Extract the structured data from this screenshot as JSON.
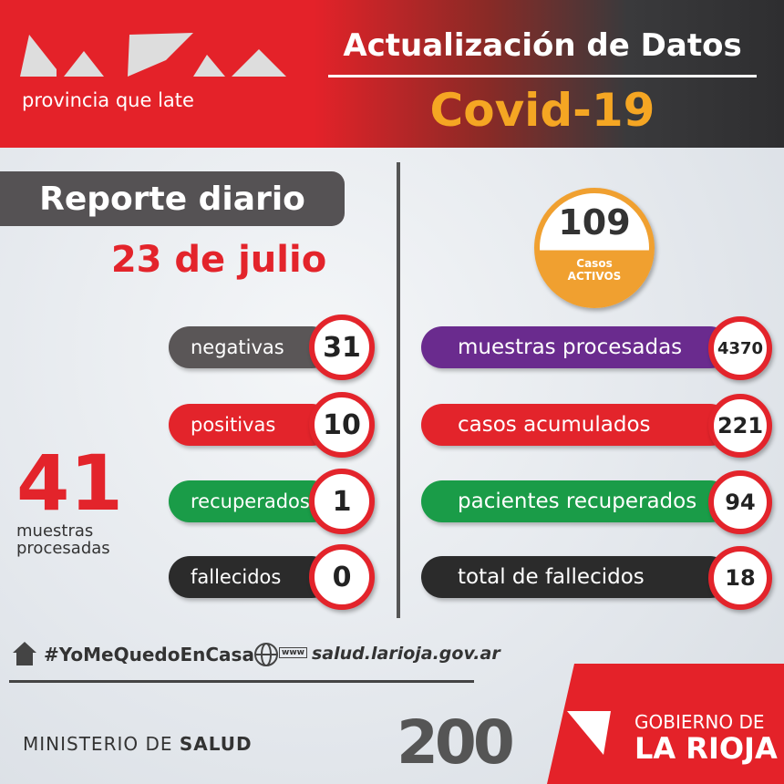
{
  "header": {
    "tagline": "provincia que late",
    "title": "Actualización de Datos",
    "subtitle": "Covid-19"
  },
  "daily": {
    "title": "Reporte diario",
    "date": "23 de julio",
    "items": [
      {
        "label": "negativas",
        "value": 31
      },
      {
        "label": "positivas",
        "value": 10
      },
      {
        "label": "recuperados",
        "value": 1
      },
      {
        "label": "fallecidos",
        "value": 0
      }
    ],
    "total": {
      "value": 41,
      "label_line1": "muestras",
      "label_line2": "procesadas"
    }
  },
  "cumulative": {
    "active": {
      "value": 109,
      "label_line1": "Casos",
      "label_line2": "ACTIVOS"
    },
    "items": [
      {
        "label": "muestras procesadas",
        "value": 4370
      },
      {
        "label": "casos acumulados",
        "value": 221
      },
      {
        "label": "pacientes recuperados",
        "value": 94
      },
      {
        "label": "total de fallecidos",
        "value": 18
      }
    ]
  },
  "footer": {
    "hashtag": "#YoMeQuedoEnCasa",
    "www": "www",
    "website": "salud.larioja.gov.ar",
    "ministry_light": "MINISTERIO DE",
    "ministry_bold": "SALUD",
    "anniversary": "200",
    "gov_line1": "GOBIERNO DE",
    "gov_line2": "LA RIOJA"
  }
}
